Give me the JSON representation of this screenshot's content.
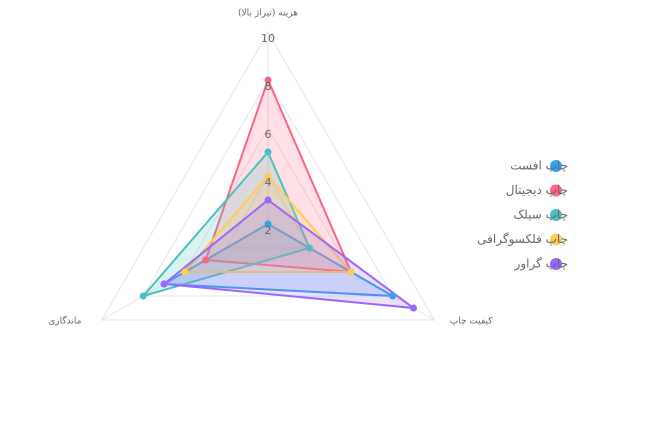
{
  "chart_data": {
    "type": "radar",
    "categories": [
      "هزینه (تیراژ بالا)",
      "کیفیت چاپ",
      "ماندگاری"
    ],
    "rlim": [
      2,
      10
    ],
    "rticks": [
      2,
      4,
      6,
      8,
      10
    ],
    "grid": true,
    "legend": "right",
    "series": [
      {
        "name": "چاپ افست",
        "color": "#36a2eb",
        "values": [
          2,
          8,
          7
        ]
      },
      {
        "name": "چاپ دیجیتال",
        "color": "#ff6384",
        "values": [
          8,
          6,
          5
        ]
      },
      {
        "name": "چاپ سیلک",
        "color": "#4bc0c0",
        "values": [
          5,
          4,
          8
        ]
      },
      {
        "name": "چاپ فلکسوگرافی",
        "color": "#ffcd56",
        "values": [
          4,
          6,
          6
        ]
      },
      {
        "name": "چاپ گراور",
        "color": "#9966ff",
        "values": [
          3,
          9,
          7
        ]
      }
    ]
  }
}
